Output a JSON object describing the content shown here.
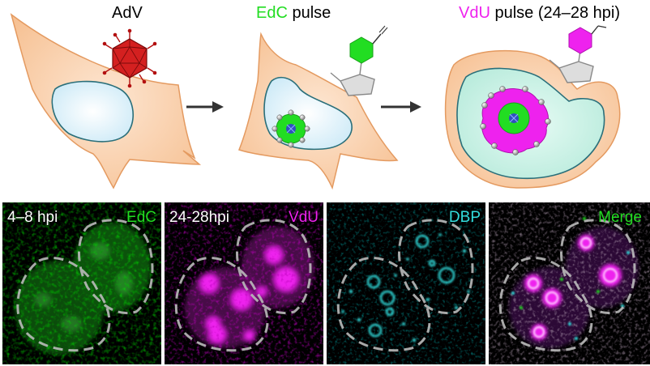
{
  "schematic": {
    "step1": {
      "title": "AdV"
    },
    "step2": {
      "title_colored": "EdC",
      "title_rest": " pulse"
    },
    "step3": {
      "title_colored": "VdU",
      "title_rest": " pulse (24–28 hpi)"
    }
  },
  "panels": [
    {
      "left_label": "4–8 hpi",
      "right_label": "EdC"
    },
    {
      "left_label": "24-28hpi",
      "right_label": "VdU"
    },
    {
      "left_label": "",
      "right_label": "DBP"
    },
    {
      "left_label": "",
      "right_label": "Merge"
    }
  ],
  "colors": {
    "edc_green": "#22dd22",
    "vdu_magenta": "#ee22ee",
    "dbp_cyan": "#33dddd",
    "cell_orange": "#f8c9a0",
    "nucleus_blue": "#d8f0fa",
    "virus_red": "#d42020"
  }
}
